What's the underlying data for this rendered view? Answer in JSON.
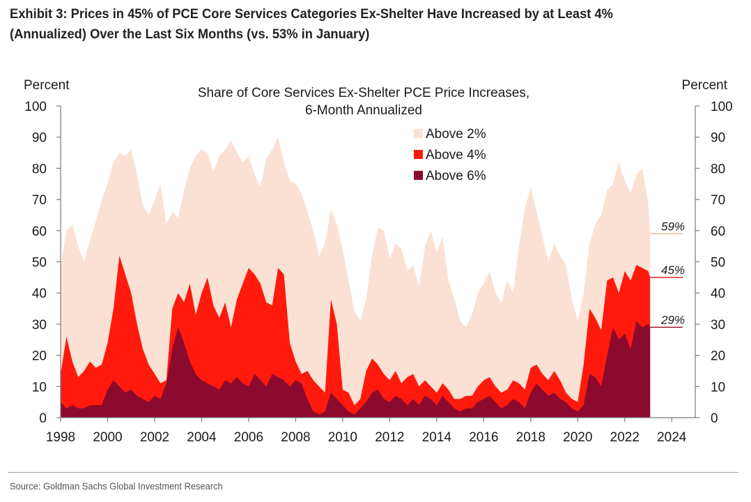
{
  "exhibit": {
    "title_line1": "Exhibit 3: Prices in 45% of PCE Core Services Categories Ex-Shelter Have Increased by at Least 4%",
    "title_line2": "(Annualized) Over the Last Six Months (vs. 53% in January)"
  },
  "source": "Source: Goldman Sachs Global Investment Research",
  "chart_data": {
    "type": "area",
    "title": "Share of Core Services Ex-Shelter PCE Price Increases,",
    "subtitle": "6-Month Annualized",
    "ylabel_left": "Percent",
    "ylabel_right": "Percent",
    "xlim": [
      1998,
      2025
    ],
    "ylim": [
      0,
      100
    ],
    "x_ticks": [
      1998,
      2000,
      2002,
      2004,
      2006,
      2008,
      2010,
      2012,
      2014,
      2016,
      2018,
      2020,
      2022,
      2024
    ],
    "y_ticks": [
      0,
      10,
      20,
      30,
      40,
      50,
      60,
      70,
      80,
      90,
      100
    ],
    "legend_position": "top-center",
    "grid": false,
    "x": [
      1998.0,
      1998.25,
      1998.5,
      1998.75,
      1999.0,
      1999.25,
      1999.5,
      1999.75,
      2000.0,
      2000.25,
      2000.5,
      2000.75,
      2001.0,
      2001.25,
      2001.5,
      2001.75,
      2002.0,
      2002.25,
      2002.5,
      2002.75,
      2003.0,
      2003.25,
      2003.5,
      2003.75,
      2004.0,
      2004.25,
      2004.5,
      2004.75,
      2005.0,
      2005.25,
      2005.5,
      2005.75,
      2006.0,
      2006.25,
      2006.5,
      2006.75,
      2007.0,
      2007.25,
      2007.5,
      2007.75,
      2008.0,
      2008.25,
      2008.5,
      2008.75,
      2009.0,
      2009.25,
      2009.5,
      2009.75,
      2010.0,
      2010.25,
      2010.5,
      2010.75,
      2011.0,
      2011.25,
      2011.5,
      2011.75,
      2012.0,
      2012.25,
      2012.5,
      2012.75,
      2013.0,
      2013.25,
      2013.5,
      2013.75,
      2014.0,
      2014.25,
      2014.5,
      2014.75,
      2015.0,
      2015.25,
      2015.5,
      2015.75,
      2016.0,
      2016.25,
      2016.5,
      2016.75,
      2017.0,
      2017.25,
      2017.5,
      2017.75,
      2018.0,
      2018.25,
      2018.5,
      2018.75,
      2019.0,
      2019.25,
      2019.5,
      2019.75,
      2020.0,
      2020.25,
      2020.5,
      2020.75,
      2021.0,
      2021.25,
      2021.5,
      2021.75,
      2022.0,
      2022.25,
      2022.5,
      2022.75,
      2023.0,
      2023.08
    ],
    "series": [
      {
        "name": "Above 2%",
        "color": "#fbe1d4",
        "values": [
          48,
          60,
          62,
          55,
          50,
          57,
          63,
          70,
          75,
          82,
          85,
          84,
          86,
          78,
          68,
          65,
          70,
          75,
          62,
          66,
          64,
          73,
          80,
          84,
          86,
          85,
          79,
          84,
          86,
          89,
          85,
          82,
          84,
          78,
          74,
          83,
          86,
          90,
          82,
          76,
          75,
          72,
          66,
          60,
          52,
          56,
          67,
          62,
          54,
          44,
          34,
          31,
          38,
          52,
          61,
          60,
          51,
          56,
          54,
          47,
          49,
          42,
          55,
          60,
          53,
          58,
          44,
          38,
          31,
          29,
          33,
          40,
          43,
          47,
          40,
          37,
          44,
          40,
          55,
          67,
          74,
          66,
          58,
          50,
          56,
          52,
          49,
          38,
          31,
          40,
          56,
          62,
          65,
          73,
          75,
          82,
          76,
          72,
          78,
          80,
          69,
          59
        ]
      },
      {
        "name": "Above 4%",
        "color": "#ff1a0d",
        "values": [
          14,
          26,
          18,
          13,
          15,
          18,
          16,
          17,
          24,
          35,
          52,
          46,
          40,
          30,
          22,
          17,
          14,
          11,
          12,
          35,
          40,
          37,
          43,
          33,
          40,
          45,
          36,
          32,
          37,
          29,
          38,
          43,
          48,
          46,
          43,
          37,
          36,
          48,
          46,
          24,
          18,
          14,
          15,
          12,
          10,
          8,
          38,
          30,
          9,
          8,
          4,
          6,
          15,
          19,
          17,
          14,
          12,
          15,
          11,
          13,
          14,
          10,
          12,
          10,
          8,
          11,
          9,
          6,
          6,
          7,
          7,
          10,
          12,
          13,
          10,
          8,
          9,
          12,
          11,
          9,
          16,
          17,
          14,
          12,
          15,
          12,
          8,
          6,
          5,
          17,
          35,
          32,
          28,
          44,
          45,
          40,
          47,
          44,
          49,
          48,
          47,
          45
        ]
      },
      {
        "name": "Above 6%",
        "color": "#8c0a2e",
        "values": [
          5,
          3,
          4,
          3,
          3,
          4,
          4,
          4,
          9,
          12,
          10,
          8,
          9,
          7,
          6,
          5,
          7,
          6,
          11,
          22,
          29,
          24,
          18,
          14,
          12,
          11,
          10,
          9,
          12,
          11,
          13,
          11,
          10,
          14,
          12,
          10,
          14,
          13,
          12,
          10,
          12,
          11,
          6,
          2,
          1,
          2,
          8,
          6,
          4,
          2,
          1,
          3,
          5,
          8,
          9,
          6,
          5,
          7,
          6,
          4,
          6,
          4,
          7,
          6,
          4,
          7,
          5,
          3,
          2,
          3,
          3,
          5,
          6,
          7,
          5,
          3,
          4,
          6,
          5,
          3,
          8,
          11,
          9,
          7,
          8,
          6,
          5,
          3,
          2,
          4,
          14,
          13,
          10,
          20,
          29,
          25,
          27,
          22,
          31,
          29,
          30,
          29
        ]
      }
    ],
    "annotations": [
      {
        "label": "59%",
        "value": 59,
        "color": "#f3b9a2"
      },
      {
        "label": "45%",
        "value": 45,
        "color": "#e0202a"
      },
      {
        "label": "29%",
        "value": 29,
        "color": "#a0102e"
      }
    ]
  }
}
